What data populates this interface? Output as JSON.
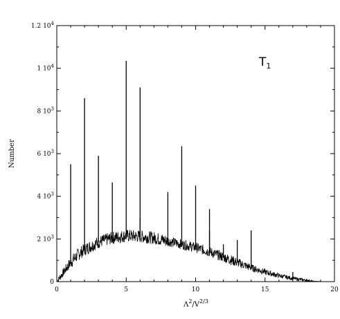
{
  "chart_data": {
    "type": "line",
    "xlabel": "Λ²/V²ᐟ³",
    "ylabel": "Number",
    "annotation": {
      "base": "T",
      "sub": "1"
    },
    "xlim": [
      0,
      20
    ],
    "ylim": [
      0,
      12000
    ],
    "x_ticks": [
      0,
      5,
      10,
      15,
      20
    ],
    "x_tick_labels": [
      "0",
      "5",
      "10",
      "15",
      "20"
    ],
    "y_ticks": [
      0,
      2000,
      4000,
      6000,
      8000,
      10000,
      12000
    ],
    "y_tick_labels": [
      {
        "mant": "0",
        "exp": ""
      },
      {
        "mant": "2 10",
        "exp": "3"
      },
      {
        "mant": "4 10",
        "exp": "3"
      },
      {
        "mant": "6 10",
        "exp": "3"
      },
      {
        "mant": "8 10",
        "exp": "3"
      },
      {
        "mant": "1 10",
        "exp": "4"
      },
      {
        "mant": "1.2 10",
        "exp": "4"
      }
    ],
    "grid": false,
    "line_color": "#000000",
    "envelope": {
      "x": [
        0,
        0.5,
        1,
        1.5,
        2,
        3,
        4,
        5,
        6,
        7,
        8,
        9,
        10,
        11,
        12,
        13,
        14,
        15,
        16,
        17,
        18,
        18.5,
        19
      ],
      "y": [
        0,
        450,
        900,
        1250,
        1500,
        1850,
        2050,
        2150,
        2120,
        2050,
        1900,
        1750,
        1600,
        1400,
        1150,
        900,
        650,
        450,
        280,
        150,
        60,
        20,
        0
      ]
    },
    "spikes": [
      {
        "x": 1,
        "y": 5500
      },
      {
        "x": 2,
        "y": 8600
      },
      {
        "x": 3,
        "y": 5900
      },
      {
        "x": 4,
        "y": 4650
      },
      {
        "x": 5,
        "y": 10350
      },
      {
        "x": 6,
        "y": 9100
      },
      {
        "x": 6,
        "y": 3000
      },
      {
        "x": 8,
        "y": 4200
      },
      {
        "x": 9,
        "y": 6350
      },
      {
        "x": 10,
        "y": 4500
      },
      {
        "x": 11,
        "y": 3400
      },
      {
        "x": 11,
        "y": 2400
      },
      {
        "x": 12,
        "y": 1750
      },
      {
        "x": 13,
        "y": 1950
      },
      {
        "x": 14,
        "y": 2400
      },
      {
        "x": 17,
        "y": 450
      }
    ]
  }
}
